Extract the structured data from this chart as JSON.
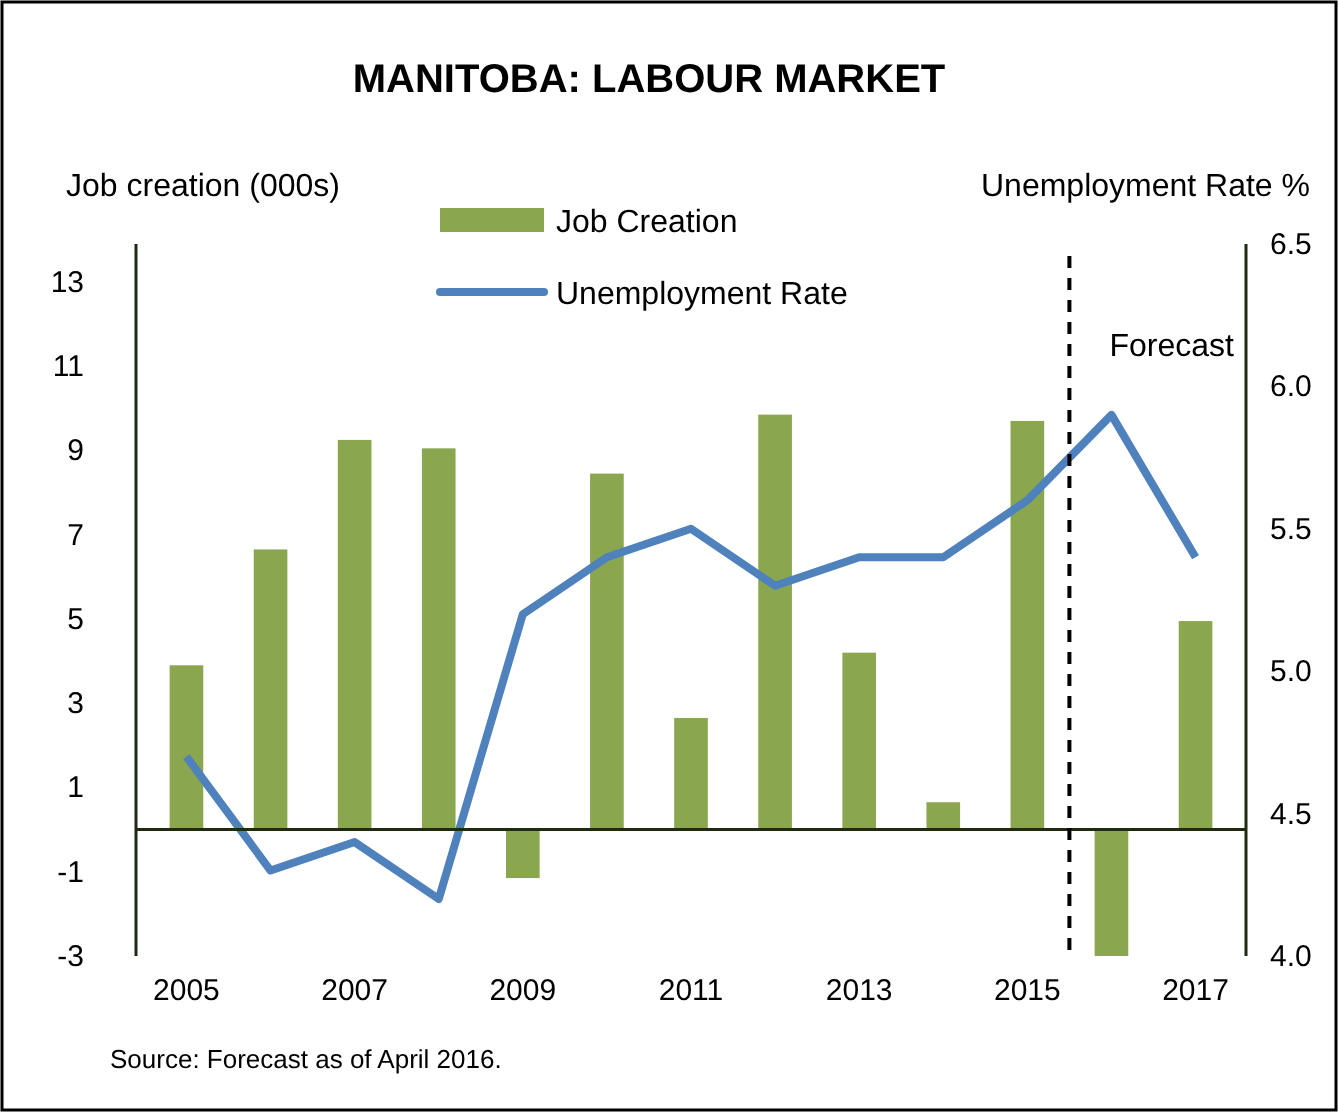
{
  "chart_data": {
    "type": "bar",
    "title": "MANITOBA: LABOUR MARKET",
    "ylabel": "Job creation (000s)",
    "y2label": "Unemployment Rate %",
    "x": [
      2005,
      2006,
      2007,
      2008,
      2009,
      2010,
      2011,
      2012,
      2013,
      2014,
      2015,
      2016,
      2017
    ],
    "xlim": [
      2004.4,
      2017.6
    ],
    "xticks": [
      2005,
      2007,
      2009,
      2011,
      2013,
      2015,
      2017
    ],
    "ylim": [
      -3,
      13.9
    ],
    "yticks": [
      -3,
      -1,
      1,
      3,
      5,
      7,
      9,
      11,
      13
    ],
    "y2lim": [
      4.0,
      6.5
    ],
    "y2ticks": [
      {
        "value": 4.0,
        "label": "4.0"
      },
      {
        "value": 4.5,
        "label": "4.5"
      },
      {
        "value": 5.0,
        "label": "5.0"
      },
      {
        "value": 5.5,
        "label": "5.5"
      },
      {
        "value": 6.0,
        "label": "6.0"
      },
      {
        "value": 6.5,
        "label": "6.5"
      }
    ],
    "series": [
      {
        "name": "Job Creation",
        "color": "#8aa64e",
        "values": [
          3.9,
          6.65,
          9.25,
          9.05,
          -1.15,
          8.45,
          2.65,
          9.85,
          4.2,
          0.65,
          9.7,
          -3,
          4.95
        ]
      },
      {
        "name": "Unemployment Rate",
        "type": "line",
        "axis": "y2",
        "color": "#4f81bd",
        "values": [
          4.7,
          4.3,
          4.4,
          4.2,
          5.2,
          5.4,
          5.5,
          5.3,
          5.4,
          5.4,
          5.6,
          5.9,
          5.4
        ]
      }
    ],
    "ref_lines": [
      {
        "axis": "x",
        "value": 2015.5,
        "label": "Forecast",
        "line_style": "dashed",
        "color": "#000000"
      }
    ],
    "legend": "top",
    "grid": false,
    "annotations": [
      "Source: Forecast as of April 2016."
    ]
  }
}
